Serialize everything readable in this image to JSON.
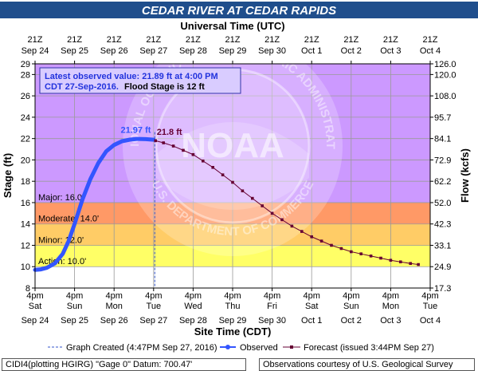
{
  "chart_data": {
    "type": "line",
    "title": "CEDAR RIVER AT CEDAR RAPIDS",
    "top_axis_title": "Universal Time (UTC)",
    "xlabel": "Site Time (CDT)",
    "ylabel": "Stage (ft)",
    "y2label": "Flow (kcfs)",
    "ylim": [
      8,
      29
    ],
    "y_ticks": [
      8,
      10,
      12,
      14,
      16,
      18,
      20,
      22,
      24,
      26,
      28,
      29
    ],
    "flow_ticks": [
      {
        "stage": 8,
        "label": "17.3"
      },
      {
        "stage": 10,
        "label": "24.9"
      },
      {
        "stage": 12,
        "label": "33.1"
      },
      {
        "stage": 14,
        "label": "42.3"
      },
      {
        "stage": 16,
        "label": "52.0"
      },
      {
        "stage": 18,
        "label": "62.2"
      },
      {
        "stage": 20,
        "label": "72.9"
      },
      {
        "stage": 22,
        "label": "84.1"
      },
      {
        "stage": 24,
        "label": "95.7"
      },
      {
        "stage": 26,
        "label": "108.0"
      },
      {
        "stage": 28,
        "label": "120.0"
      },
      {
        "stage": 29,
        "label": "126.0"
      }
    ],
    "x_range_days": [
      0,
      10
    ],
    "top_ticks": [
      {
        "l1": "21Z",
        "l2": "Sep 24"
      },
      {
        "l1": "21Z",
        "l2": "Sep 25"
      },
      {
        "l1": "21Z",
        "l2": "Sep 26"
      },
      {
        "l1": "21Z",
        "l2": "Sep 27"
      },
      {
        "l1": "21Z",
        "l2": "Sep 28"
      },
      {
        "l1": "21Z",
        "l2": "Sep 29"
      },
      {
        "l1": "21Z",
        "l2": "Sep 30"
      },
      {
        "l1": "21Z",
        "l2": "Oct 1"
      },
      {
        "l1": "21Z",
        "l2": "Oct 2"
      },
      {
        "l1": "21Z",
        "l2": "Oct 3"
      },
      {
        "l1": "21Z",
        "l2": "Oct 4"
      }
    ],
    "bottom_ticks": [
      {
        "l1": "4pm",
        "l2": "Sat",
        "l3": "Sep 24"
      },
      {
        "l1": "4pm",
        "l2": "Sun",
        "l3": "Sep 25"
      },
      {
        "l1": "4pm",
        "l2": "Mon",
        "l3": "Sep 26"
      },
      {
        "l1": "4pm",
        "l2": "Tue",
        "l3": "Sep 27"
      },
      {
        "l1": "4pm",
        "l2": "Wed",
        "l3": "Sep 28"
      },
      {
        "l1": "4pm",
        "l2": "Thu",
        "l3": "Sep 29"
      },
      {
        "l1": "4pm",
        "l2": "Fri",
        "l3": "Sep 30"
      },
      {
        "l1": "4pm",
        "l2": "Sat",
        "l3": "Oct 1"
      },
      {
        "l1": "4pm",
        "l2": "Sun",
        "l3": "Oct 2"
      },
      {
        "l1": "4pm",
        "l2": "Mon",
        "l3": "Oct 3"
      },
      {
        "l1": "4pm",
        "l2": "Tue",
        "l3": "Oct 4"
      }
    ],
    "bands": [
      {
        "name": "Action",
        "label": "Action: 10.0'",
        "from": 10,
        "to": 12,
        "color": "#ffff66"
      },
      {
        "name": "Minor",
        "label": "Minor: 12.0'",
        "from": 12,
        "to": 14,
        "color": "#ffcc66"
      },
      {
        "name": "Moderate",
        "label": "Moderate: 14.0'",
        "from": 14,
        "to": 16,
        "color": "#ff9966"
      },
      {
        "name": "Major",
        "label": "Major: 16.0'",
        "from": 16,
        "to": 29,
        "color": "#cc99ff"
      }
    ],
    "graph_created_day": 3.03,
    "observed": {
      "name": "Observed",
      "color": "#3355ff",
      "x": [
        0.0,
        0.15,
        0.3,
        0.5,
        0.7,
        0.85,
        1.0,
        1.2,
        1.4,
        1.6,
        1.8,
        2.0,
        2.2,
        2.4,
        2.6,
        2.8,
        2.9,
        3.0
      ],
      "y": [
        9.7,
        9.75,
        9.9,
        10.3,
        11.2,
        12.4,
        14.0,
        16.3,
        18.2,
        19.7,
        20.8,
        21.4,
        21.75,
        21.9,
        21.97,
        21.95,
        21.92,
        21.89
      ]
    },
    "forecast": {
      "name": "Forecast",
      "color": "#660033",
      "x": [
        3.05,
        3.25,
        3.5,
        3.75,
        4.0,
        4.25,
        4.5,
        4.75,
        5.0,
        5.25,
        5.5,
        5.75,
        6.0,
        6.25,
        6.5,
        6.75,
        7.0,
        7.25,
        7.5,
        7.75,
        8.0,
        8.25,
        8.5,
        8.75,
        9.0,
        9.25,
        9.5,
        9.7
      ],
      "y": [
        21.8,
        21.6,
        21.3,
        20.9,
        20.5,
        19.9,
        19.3,
        18.6,
        17.9,
        17.1,
        16.4,
        15.7,
        15.0,
        14.4,
        13.8,
        13.3,
        12.8,
        12.4,
        12.0,
        11.7,
        11.4,
        11.2,
        11.0,
        10.8,
        10.6,
        10.45,
        10.3,
        10.2
      ]
    },
    "peak_label": "21.97 ft",
    "forecast_start_label": "21.8 ft",
    "info_line1": "Latest observed value: 21.89 ft at 4:00 PM",
    "info_line2a": "CDT 27-Sep-2016.",
    "info_line2b": "Flood Stage is 12 ft",
    "legend": {
      "graph_created": "Graph Created (4:47PM Sep 27, 2016)",
      "observed": "Observed",
      "forecast": "Forecast (issued 3:44PM Sep 27)"
    },
    "watermark_text": "NATIONAL OCEANIC AND ATMOSPHERIC ADMINISTRATION",
    "watermark_text_bottom": "U.S. DEPARTMENT OF COMMERCE",
    "watermark_logo_text": "NOAA"
  },
  "footer": {
    "left": "CIDI4(plotting HGIRG) \"Gage 0\" Datum: 700.47'",
    "right": "Observations courtesy of U.S. Geological Survey"
  }
}
